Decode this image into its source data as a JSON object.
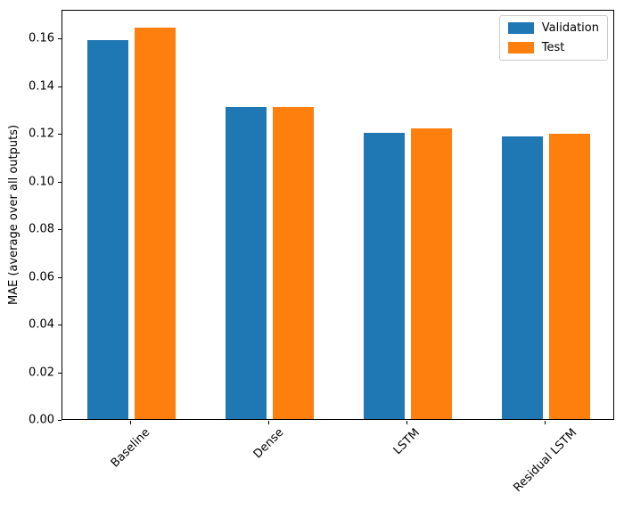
{
  "chart_data": {
    "type": "bar",
    "title": "",
    "xlabel": "",
    "ylabel": "MAE (average over all outputs)",
    "categories": [
      "Baseline",
      "Dense",
      "LSTM",
      "Residual LSTM"
    ],
    "series": [
      {
        "name": "Validation",
        "color": "#1f77b4",
        "values": [
          0.159,
          0.131,
          0.12,
          0.1185
        ]
      },
      {
        "name": "Test",
        "color": "#ff7f0e",
        "values": [
          0.164,
          0.131,
          0.122,
          0.1195
        ]
      }
    ],
    "ylim": [
      0,
      0.172
    ],
    "yticks": [
      0.0,
      0.02,
      0.04,
      0.06,
      0.08,
      0.1,
      0.12,
      0.14,
      0.16
    ],
    "ytick_labels": [
      "0.00",
      "0.02",
      "0.04",
      "0.06",
      "0.08",
      "0.10",
      "0.12",
      "0.14",
      "0.16"
    ],
    "xtick_rotation": 45,
    "grid": false,
    "bar_width_units": 0.3,
    "series_offsets_units": [
      -0.17,
      0.17
    ],
    "legend": {
      "position": "upper right",
      "entries": [
        "Validation",
        "Test"
      ]
    },
    "axis_color": "#000000",
    "background_color": "#ffffff"
  }
}
